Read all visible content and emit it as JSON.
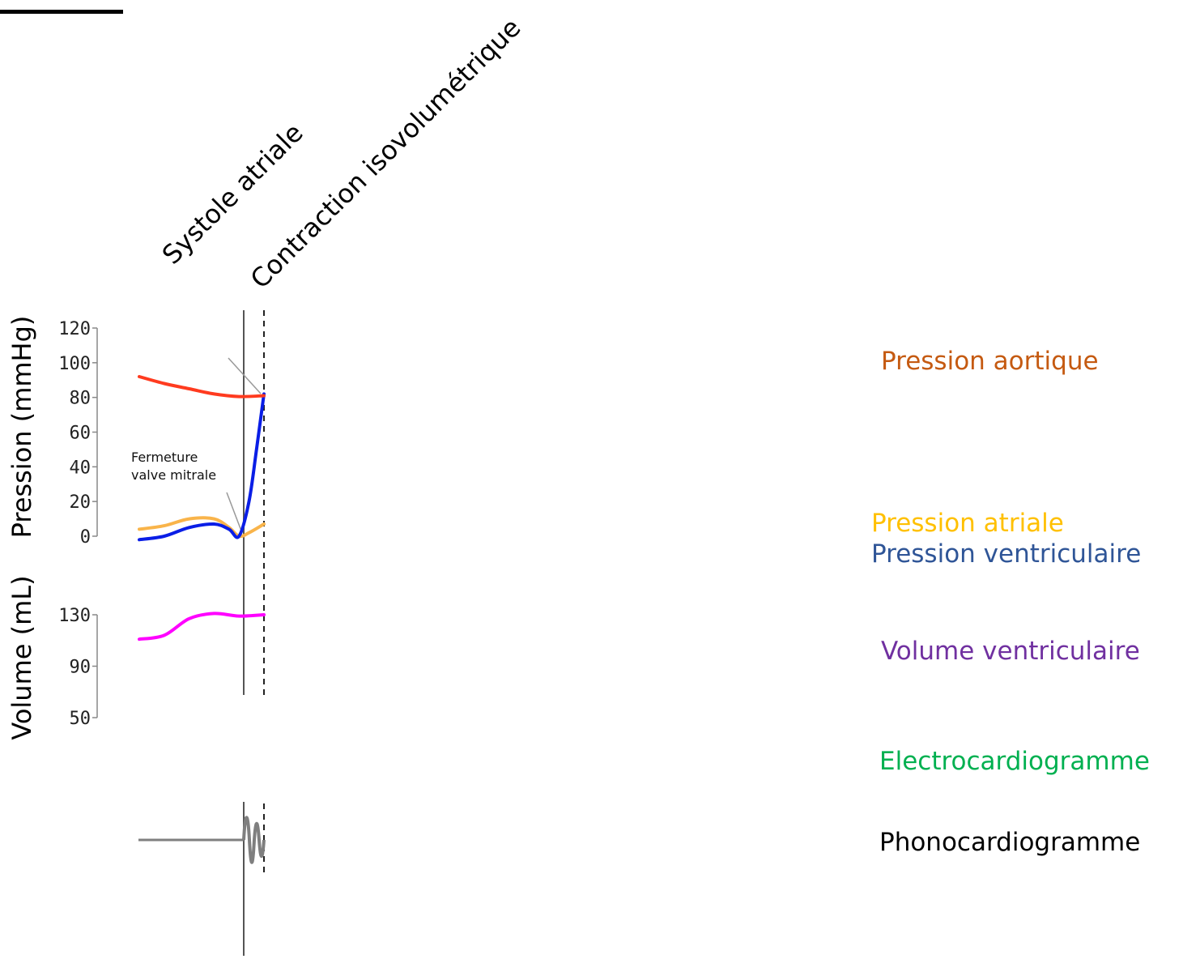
{
  "chart_data": {
    "type": "line",
    "phases": [
      "Systole atriale",
      "Contraction isovolumétrique"
    ],
    "annotation": "Fermeture valve mitrale",
    "pressure_axis": {
      "label": "Pression (mmHg)",
      "ticks": [
        0,
        20,
        40,
        60,
        80,
        100,
        120
      ],
      "ylim": [
        0,
        120
      ]
    },
    "volume_axis": {
      "label": "Volume (mL)",
      "ticks": [
        50,
        90,
        130
      ],
      "ylim": [
        50,
        130
      ]
    },
    "series": [
      {
        "name": "Pression aortique",
        "axis": "pressure",
        "color": "#ff3b1f",
        "legend_color": "#c55a11",
        "x": [
          0.0,
          0.5,
          1.0,
          1.5,
          2.0,
          2.5
        ],
        "y": [
          92,
          88,
          85,
          82,
          80.5,
          81
        ]
      },
      {
        "name": "Pression atriale",
        "axis": "pressure",
        "color": "#f9b44a",
        "legend_color": "#ffc000",
        "x": [
          0.0,
          0.5,
          1.0,
          1.5,
          1.8,
          2.0,
          2.2,
          2.5
        ],
        "y": [
          4,
          6,
          10,
          10,
          5,
          0,
          2,
          7
        ]
      },
      {
        "name": "Pression ventriculaire",
        "axis": "pressure",
        "color": "#0a1ee6",
        "legend_color": "#2f5597",
        "x": [
          0.0,
          0.5,
          1.0,
          1.5,
          1.8,
          2.0,
          2.2,
          2.35,
          2.5
        ],
        "y": [
          -2,
          0,
          5,
          7,
          4,
          0,
          20,
          50,
          82
        ]
      },
      {
        "name": "Volume ventriculaire",
        "axis": "volume",
        "color": "#ff00ff",
        "legend_color": "#7030a0",
        "x": [
          0.0,
          0.5,
          1.0,
          1.5,
          2.0,
          2.5
        ],
        "y": [
          111,
          114,
          127,
          131,
          129,
          130
        ]
      },
      {
        "name": "Electrocardiogramme",
        "legend_color": "#00b050"
      },
      {
        "name": "Phonocardiogramme",
        "legend_color": "#000000"
      }
    ]
  }
}
